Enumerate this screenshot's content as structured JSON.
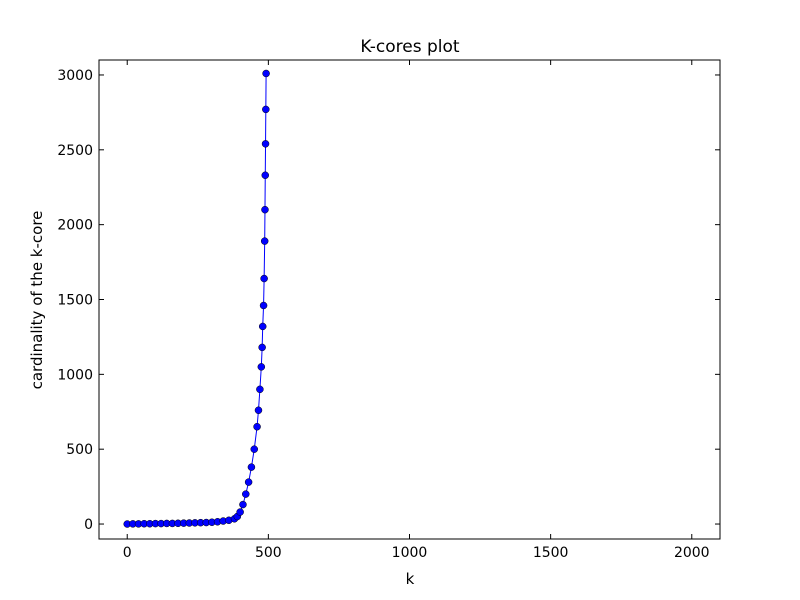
{
  "chart_data": {
    "type": "line",
    "title": "K-cores plot",
    "x_label": "k",
    "y_label": "cardinality of the k-core",
    "x": [
      0,
      20,
      40,
      60,
      80,
      100,
      120,
      140,
      160,
      180,
      200,
      220,
      240,
      260,
      280,
      300,
      320,
      340,
      360,
      380,
      390,
      400,
      410,
      420,
      430,
      440,
      450,
      460,
      465,
      470,
      475,
      478,
      480,
      483,
      485,
      487,
      488,
      489,
      490,
      491,
      492
    ],
    "series": [
      {
        "name": "k-core",
        "color": "#0000ff",
        "values": [
          0,
          1,
          1,
          2,
          2,
          3,
          3,
          4,
          4,
          5,
          6,
          7,
          8,
          9,
          10,
          12,
          15,
          20,
          25,
          35,
          50,
          80,
          130,
          200,
          280,
          380,
          500,
          650,
          760,
          900,
          1050,
          1180,
          1320,
          1460,
          1640,
          1890,
          2100,
          2330,
          2540,
          2770,
          3010
        ]
      }
    ],
    "xlim": [
      -100,
      2100
    ],
    "ylim": [
      -100,
      3100
    ],
    "xticks": [
      0,
      500,
      1000,
      1500,
      2000
    ],
    "yticks": [
      0,
      500,
      1000,
      1500,
      2000,
      2500,
      3000
    ]
  }
}
